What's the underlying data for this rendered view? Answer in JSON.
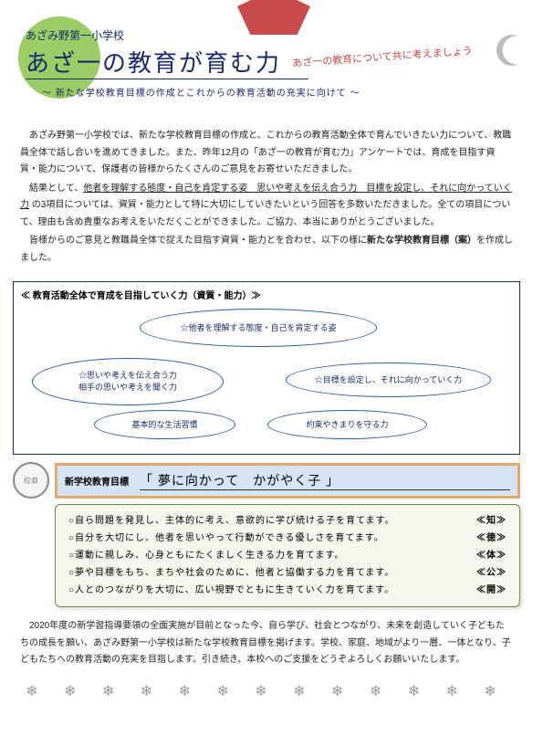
{
  "header": {
    "school": "あざみ野第一小学校",
    "title": "あざ一の教育が育む力",
    "curve": "あざ一の教育について共に考えましょう",
    "subtitle": "〜 新たな学校教育目標の作成とこれからの教育活動の充実に向けて 〜"
  },
  "body": {
    "p1": "あざみ野第一小学校では、新たな学校教育目標の作成と、これからの教育活動全体で育んでいきたい力について、教職員全体で話し合いを進めてきました。また、昨年12月の「あざ一の教育が育む力」アンケートでは、育成を目指す資質・能力について、保護者の皆様からたくさんのご意見をお寄せいただきました。",
    "p2a": "結果として、",
    "p2u": "他者を理解する態度・自己を肯定する姿　思いや考えを伝え合う力　目標を設定し、それに向かっていく力",
    "p2b": " の3項目については、資質・能力として特に大切にしていきたいという回答を多数いただきました。全ての項目について、理由も含め貴重なお考えをいただくことができました。ご協力、本当にありがとうございました。",
    "p3a": "皆様からのご意見と教職員全体で捉えた目指す資質・能力とを合わせ、以下の様に",
    "p3b": "新たな学校教育目標（案）",
    "p3c": "を作成しました。"
  },
  "box": {
    "title": "≪ 教育活動全体で育成を目指していく力（資質・能力）≫",
    "o1": "☆他者を理解する態度・自己を肯定する姿",
    "o2": "☆思いや考えを伝え合う力\n相手の思いや考えを聞く力",
    "o3": "☆目標を設定し、それに向かっていく力",
    "o4": "基本的な生活習慣",
    "o5": "約束やきまりを守る力"
  },
  "goal": {
    "label": "新学校教育目標",
    "text": "「 夢に向かって　かがやく子 」"
  },
  "goals": [
    {
      "t": "○自ら問題を発見し、主体的に考え、意欲的に学び続ける子を育てます。",
      "tag": "≪知≫"
    },
    {
      "t": "○自分を大切にし、他者を思いやって行動ができる優しさを育てます。",
      "tag": "≪徳≫"
    },
    {
      "t": "○運動に親しみ、心身ともにたくましく生きる力を育てます。",
      "tag": "≪体≫"
    },
    {
      "t": "○夢や目標をもち、まちや社会のために、他者と協働する力を育てます。",
      "tag": "≪公≫"
    },
    {
      "t": "○人とのつながりを大切に、広い視野でともに生きていく力を育てます。",
      "tag": "≪開≫"
    }
  ],
  "footer": {
    "p": "2020年度の新学習指導要領の全面実施が目前となった今、自ら学び、社会とつながり、未来を創造していく子どもたちの成長を願い、あざみ野第一小学校は新たな学校教育目標を掲げます。学校、家庭、地域がより一層、一体となり、子どもたちへの教育活動の充実を目指します。引き続き、本校へのご支援をどうぞよろしくお願いいたします。"
  },
  "snow": "❄ ❄ ❄ ❄ ❄ ❄ ❄ ❄ ❄ ❄ ❄ ❄ ❄",
  "colors": {
    "navy": "#1a2a6c",
    "red": "#c94a4a",
    "green": "#8bc34a",
    "orange": "#e8a868",
    "blue_bg": "#d4e4f4",
    "olive": "#6a8a4a"
  }
}
